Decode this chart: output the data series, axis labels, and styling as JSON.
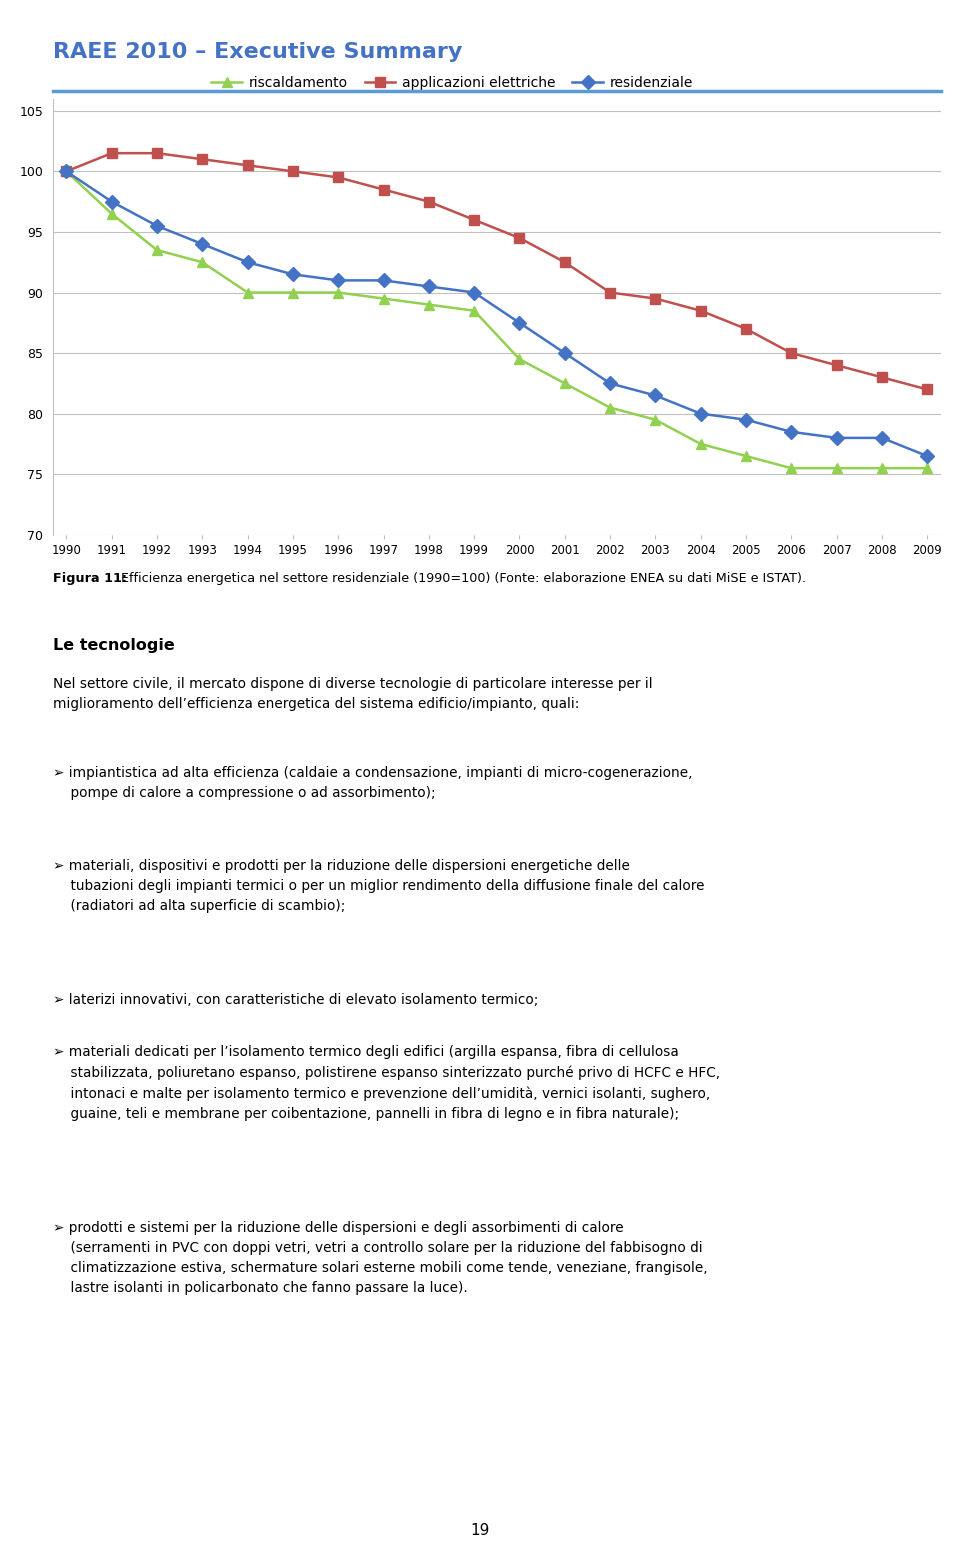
{
  "title": "RAEE 2010 – Executive Summary",
  "title_color": "#4472C4",
  "title_fontsize": 16,
  "header_line_color": "#5B9BD5",
  "years": [
    1990,
    1991,
    1992,
    1993,
    1994,
    1995,
    1996,
    1997,
    1998,
    1999,
    2000,
    2001,
    2002,
    2003,
    2004,
    2005,
    2006,
    2007,
    2008,
    2009
  ],
  "riscaldamento": [
    100.0,
    96.5,
    93.5,
    92.5,
    90.0,
    90.0,
    90.0,
    89.5,
    89.0,
    88.5,
    84.5,
    82.5,
    80.5,
    79.5,
    77.5,
    76.5,
    75.5,
    75.5,
    75.5,
    75.5
  ],
  "applicazioni_elettriche": [
    100.0,
    101.5,
    101.5,
    101.0,
    100.5,
    100.0,
    99.5,
    98.5,
    97.5,
    96.0,
    94.5,
    92.5,
    90.0,
    89.5,
    88.5,
    87.0,
    85.0,
    84.0,
    83.0,
    82.0
  ],
  "residenziale": [
    100.0,
    97.5,
    95.5,
    94.0,
    92.5,
    91.5,
    91.0,
    91.0,
    90.5,
    90.0,
    87.5,
    85.0,
    82.5,
    81.5,
    80.0,
    79.5,
    78.5,
    78.0,
    78.0,
    76.5
  ],
  "riscaldamento_color": "#92D050",
  "applicazioni_color": "#C0504D",
  "residenziale_color": "#4472C4",
  "ylim": [
    70,
    106
  ],
  "yticks": [
    70,
    75,
    80,
    85,
    90,
    95,
    100,
    105
  ],
  "fig_caption_bold": "Figura 11:",
  "fig_caption_rest": " Efficienza energetica nel settore residenziale (1990=100) (Fonte: elaborazione ENEA su dati MiSE e ISTAT).",
  "section_title": "Le tecnologie",
  "intro_text": "Nel settore civile, il mercato dispone di diverse tecnologie di particolare interesse per il miglioramento dell’efficienza energetica del sistema edificio/impianto, quali:",
  "bullets": [
    "impiantistica ad alta efficienza (caldaie a condensazione, impianti di micro-cogenerazione, pompe di calore a compressione o ad assorbimento);",
    "materiali, dispositivi e prodotti per la riduzione delle dispersioni energetiche delle tubazioni degli impianti termici o per un miglior rendimento della diffusione finale del calore (radiatori ad alta superficie di scambio);",
    "laterizi innovativi, con caratteristiche di elevato isolamento termico;",
    "materiali dedicati per l’isolamento termico degli edifici (argilla espansa, fibra di cellulosa stabilizzata, poliuretano espanso, polistirene espanso sinterizzato purché privo di HCFC e HFC, intonaci e malte per isolamento termico e prevenzione dell’umidità, vernici isolanti, sughero, guaine, teli e membrane per coibentazione, pannelli in fibra di legno e in fibra naturale);",
    "prodotti e sistemi per la riduzione delle dispersioni e degli assorbimenti di calore (serramenti in PVC con doppi vetri, vetri a controllo solare per la riduzione del fabbisogno di climatizzazione estiva, schermature solari esterne mobili come tende, veneziane, frangisole, lastre isolanti in policarbonato che fanno passare la luce)."
  ],
  "page_number": "19",
  "background_color": "#FFFFFF",
  "text_color": "#000000",
  "grid_color": "#C0C0C0",
  "legend_labels": [
    "riscaldamento",
    "applicazioni elettriche",
    "residenziale"
  ]
}
